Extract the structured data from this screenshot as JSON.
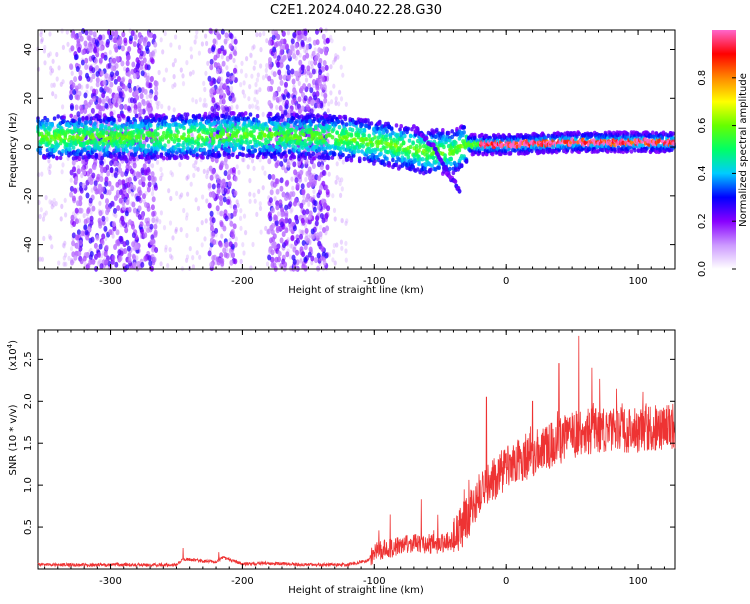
{
  "title": "C2E1.2024.040.22.28.G30",
  "chart_data": [
    {
      "type": "heatmap",
      "xlabel": "Height of straight line (km)",
      "ylabel": "Frequency (Hz)",
      "xlim": [
        -355,
        128
      ],
      "ylim": [
        -50,
        48
      ],
      "xticks": [
        -300,
        -200,
        -100,
        0,
        100
      ],
      "yticks": [
        -40,
        -20,
        0,
        20,
        40
      ],
      "colorbar": {
        "label": "Normalized spectral amplitude",
        "range": [
          0,
          1
        ],
        "ticks": [
          0.0,
          0.2,
          0.4,
          0.6,
          0.8
        ],
        "tick_labels": [
          "0.0",
          "0.2",
          "0.4",
          "0.6",
          "0.8"
        ],
        "colormap": [
          "#ffffff",
          "#cc99ff",
          "#8800ff",
          "#0000ff",
          "#00ccff",
          "#00ff66",
          "#66ff00",
          "#ffff00",
          "#ff8800",
          "#ff0000",
          "#ff66cc"
        ]
      },
      "features": {
        "main_band_freq_hz": [
          [
            -355,
            4
          ],
          [
            -270,
            4
          ],
          [
            -200,
            5
          ],
          [
            -130,
            4
          ],
          [
            -100,
            2
          ],
          [
            -80,
            0
          ],
          [
            -60,
            -2
          ],
          [
            -40,
            -2
          ],
          [
            -30,
            1
          ],
          [
            0,
            1
          ],
          [
            50,
            2
          ],
          [
            128,
            2
          ]
        ],
        "vertical_clusters_x_km": [
          [
            -330,
            -265
          ],
          [
            -225,
            -205
          ],
          [
            -180,
            -135
          ]
        ],
        "descending_branch": [
          [
            -70,
            8
          ],
          [
            -55,
            0
          ],
          [
            -45,
            -10
          ],
          [
            -35,
            -18
          ]
        ]
      }
    },
    {
      "type": "line",
      "xlabel": "Height of straight line (km)",
      "ylabel": "SNR (10 * v/v)",
      "scale_label": "(x10",
      "scale_exp": "4",
      "xlim": [
        -355,
        128
      ],
      "ylim": [
        0,
        2.85
      ],
      "xticks": [
        -300,
        -200,
        -100,
        0,
        100
      ],
      "yticks": [
        0.5,
        1.0,
        1.5,
        2.0,
        2.5
      ],
      "ytick_labels": [
        "0.5",
        "1.0",
        "1.5",
        "2.0",
        "2.5"
      ],
      "color": "#ee3333",
      "trend": {
        "x": [
          -355,
          -250,
          -245,
          -220,
          -215,
          -200,
          -180,
          -150,
          -120,
          -105,
          -100,
          -90,
          -70,
          -50,
          -40,
          -30,
          -20,
          -10,
          0,
          10,
          30,
          50,
          70,
          90,
          110,
          128
        ],
        "y": [
          0.05,
          0.05,
          0.12,
          0.08,
          0.14,
          0.06,
          0.07,
          0.05,
          0.05,
          0.1,
          0.2,
          0.25,
          0.3,
          0.3,
          0.35,
          0.6,
          0.9,
          1.05,
          1.2,
          1.3,
          1.45,
          1.6,
          1.65,
          1.65,
          1.68,
          1.7
        ]
      },
      "peaks": [
        {
          "x": 55,
          "y": 2.78
        },
        {
          "x": 40,
          "y": 2.45
        },
        {
          "x": 65,
          "y": 2.4
        },
        {
          "x": -15,
          "y": 2.05
        },
        {
          "x": 20,
          "y": 2.0
        },
        {
          "x": -88,
          "y": 0.65
        },
        {
          "x": -245,
          "y": 0.25
        },
        {
          "x": -218,
          "y": 0.2
        },
        {
          "x": 120,
          "y": 1.9
        }
      ]
    }
  ]
}
